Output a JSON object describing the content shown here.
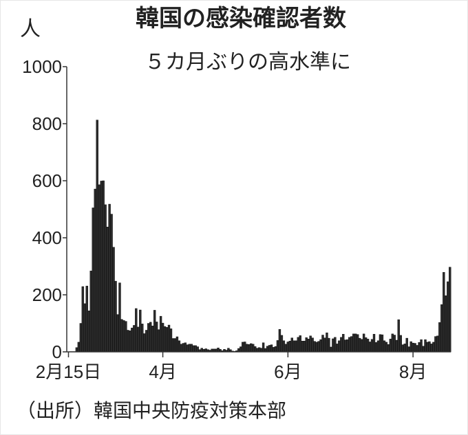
{
  "chart_data": {
    "type": "bar",
    "title": "韓国の感染確認者数",
    "subtitle": "５カ月ぶりの高水準に",
    "y_unit": "人",
    "source": "（出所）韓国中央防疫対策本部",
    "color": "#2b2b2b",
    "categories": [
      "2月15日",
      null,
      null,
      null,
      null,
      null,
      null,
      null,
      null,
      null,
      null,
      null,
      null,
      null,
      null,
      null,
      null,
      null,
      null,
      null,
      null,
      null,
      null,
      null,
      null,
      null,
      null,
      null,
      null,
      null,
      null,
      null,
      null,
      null,
      null,
      null,
      null,
      null,
      null,
      null,
      null,
      null,
      null,
      null,
      null,
      null,
      "4月",
      null,
      null,
      null,
      null,
      null,
      null,
      null,
      null,
      null,
      null,
      null,
      null,
      null,
      null,
      null,
      null,
      null,
      null,
      null,
      null,
      null,
      null,
      null,
      null,
      null,
      null,
      null,
      null,
      null,
      null,
      null,
      null,
      null,
      null,
      null,
      null,
      null,
      null,
      null,
      null,
      null,
      null,
      null,
      null,
      null,
      null,
      null,
      null,
      null,
      null,
      null,
      null,
      null,
      null,
      null,
      null,
      null,
      null,
      null,
      null,
      "6月",
      null,
      null,
      null,
      null,
      null,
      null,
      null,
      null,
      null,
      null,
      null,
      null,
      null,
      null,
      null,
      null,
      null,
      null,
      null,
      null,
      null,
      null,
      null,
      null,
      null,
      null,
      null,
      null,
      null,
      null,
      null,
      null,
      null,
      null,
      null,
      null,
      null,
      null,
      null,
      null,
      null,
      null,
      null,
      null,
      null,
      null,
      null,
      null,
      null,
      null,
      null,
      null,
      null,
      null,
      null,
      null,
      null,
      null,
      null,
      null,
      "8月",
      null,
      null,
      null,
      null,
      null,
      null,
      null,
      null,
      null,
      null,
      null,
      null,
      null,
      null,
      null,
      null,
      null,
      null
    ],
    "values": [
      0,
      1,
      1,
      1,
      15,
      34,
      100,
      229,
      169,
      231,
      144,
      284,
      505,
      571,
      813,
      586,
      599,
      600,
      516,
      438,
      518,
      483,
      367,
      248,
      131,
      242,
      114,
      110,
      107,
      76,
      74,
      84,
      93,
      152,
      87,
      147,
      98,
      64,
      76,
      100,
      104,
      91,
      146,
      105,
      78,
      125,
      101,
      89,
      86,
      94,
      81,
      47,
      47,
      53,
      39,
      27,
      30,
      32,
      25,
      27,
      27,
      22,
      22,
      18,
      8,
      13,
      9,
      11,
      8,
      6,
      10,
      10,
      10,
      14,
      9,
      4,
      9,
      6,
      13,
      8,
      3,
      2,
      4,
      12,
      18,
      34,
      35,
      27,
      26,
      29,
      27,
      19,
      13,
      15,
      13,
      32,
      12,
      20,
      23,
      25,
      16,
      19,
      40,
      79,
      58,
      39,
      27,
      35,
      38,
      49,
      39,
      39,
      51,
      57,
      38,
      38,
      50,
      45,
      56,
      49,
      37,
      34,
      37,
      43,
      59,
      49,
      67,
      48,
      17,
      46,
      51,
      28,
      39,
      51,
      62,
      42,
      43,
      51,
      54,
      63,
      63,
      61,
      48,
      44,
      63,
      50,
      45,
      35,
      44,
      62,
      33,
      39,
      61,
      60,
      39,
      34,
      26,
      45,
      63,
      59,
      41,
      113,
      58,
      25,
      28,
      48,
      18,
      36,
      31,
      30,
      23,
      33,
      43,
      20,
      43,
      34,
      36,
      28,
      34,
      54,
      56,
      103,
      166,
      279,
      197,
      246,
      297
    ],
    "ylim": [
      0,
      1000
    ],
    "yticks": [
      0,
      200,
      400,
      600,
      800,
      1000
    ],
    "grid": false
  }
}
